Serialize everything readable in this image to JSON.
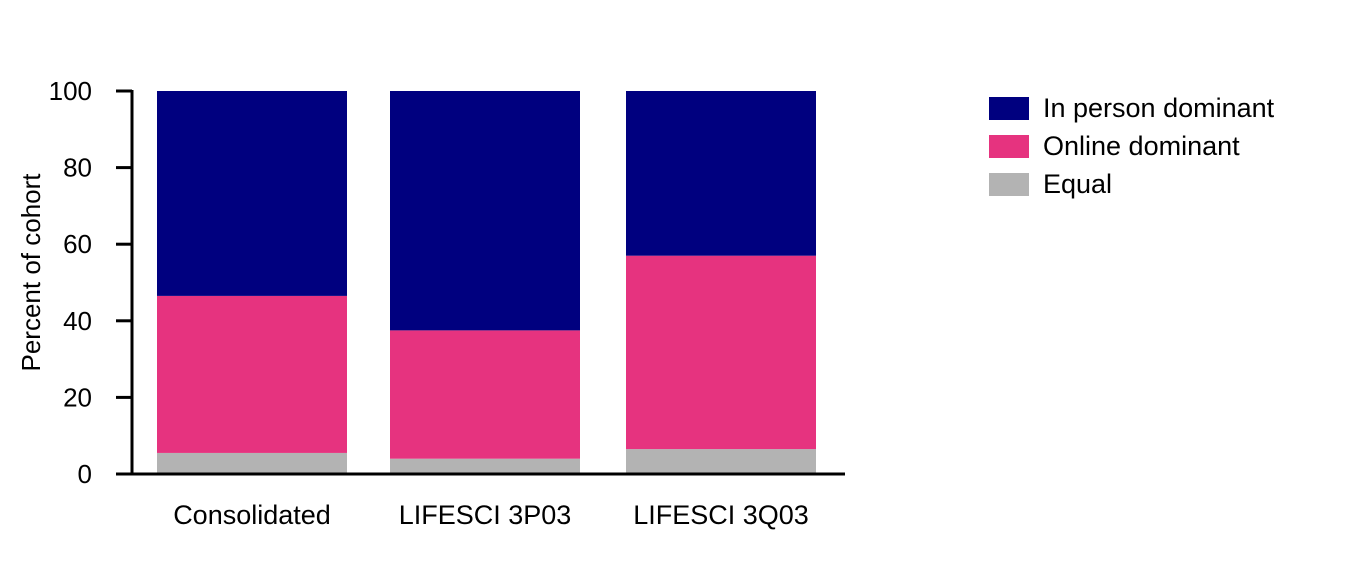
{
  "chart_data": {
    "type": "bar",
    "stacked": true,
    "title": "",
    "xlabel": "",
    "ylabel": "Percent of cohort",
    "ylim": [
      0,
      100
    ],
    "yticks": [
      0,
      20,
      40,
      60,
      80,
      100
    ],
    "categories": [
      "Consolidated",
      "LIFESCI 3P03",
      "LIFESCI 3Q03"
    ],
    "series": [
      {
        "name": "Equal",
        "color": "#b3b3b3",
        "values": [
          5.5,
          4,
          6.5
        ]
      },
      {
        "name": "Online dominant",
        "color": "#e6337f",
        "values": [
          41,
          33.5,
          50.5
        ]
      },
      {
        "name": "In person dominant",
        "color": "#00007f",
        "values": [
          53.5,
          62.5,
          43
        ]
      }
    ],
    "legend": {
      "position": "right",
      "order": [
        "In person dominant",
        "Online dominant",
        "Equal"
      ]
    },
    "grid": false
  }
}
